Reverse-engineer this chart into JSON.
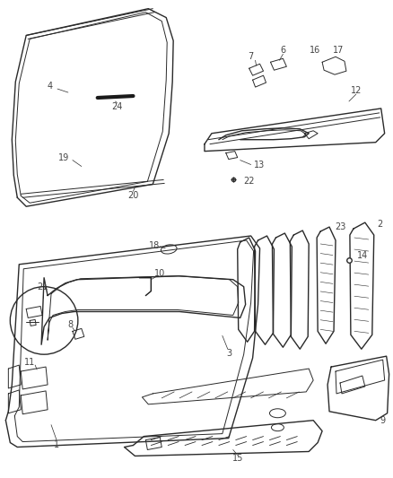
{
  "background_color": "#ffffff",
  "line_color": "#2a2a2a",
  "label_color": "#444444",
  "fig_width": 4.38,
  "fig_height": 5.33
}
